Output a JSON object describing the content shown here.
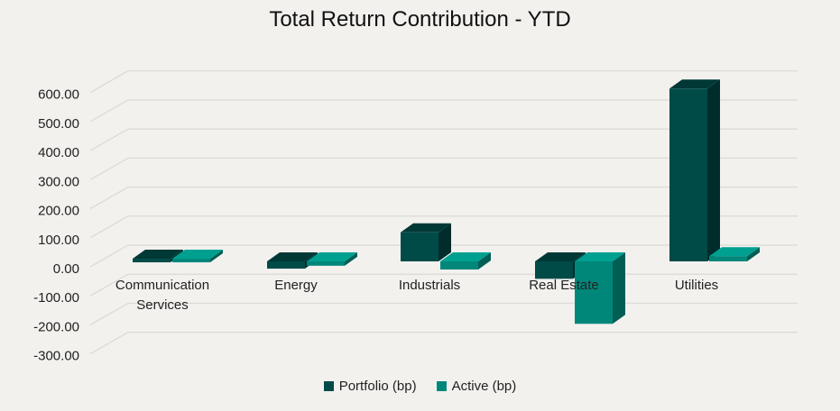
{
  "chart_data": {
    "type": "bar",
    "title": "Total Return Contribution - YTD",
    "categories": [
      "Communication Services",
      "Energy",
      "Industrials",
      "Real Estate",
      "Utilities"
    ],
    "category_lines": [
      [
        "Communication",
        "Services"
      ],
      [
        "Energy"
      ],
      [
        "Industrials"
      ],
      [
        "Real Estate"
      ],
      [
        "Utilities"
      ]
    ],
    "series": [
      {
        "name": "Portfolio (bp)",
        "values": [
          3,
          -25,
          100,
          -60,
          595
        ]
      },
      {
        "name": "Active (bp)",
        "values": [
          3,
          -15,
          -28,
          -215,
          18
        ]
      }
    ],
    "ylim": [
      -300,
      600
    ],
    "yticks": [
      "600.00",
      "500.00",
      "400.00",
      "300.00",
      "200.00",
      "100.00",
      "0.00",
      "-100.00",
      "-200.00",
      "-300.00"
    ],
    "grid": true,
    "legend_position": "bottom",
    "colors": {
      "portfolio": "#004b48",
      "active": "#00877a",
      "background": "#f2f1ee",
      "grid": "#d9d9d6"
    }
  }
}
